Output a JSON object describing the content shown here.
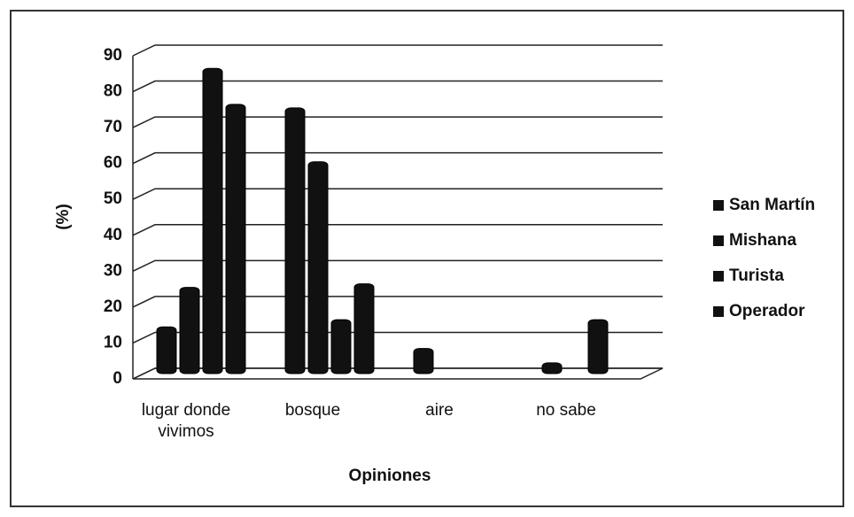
{
  "chart_data": {
    "type": "bar3d",
    "categories": [
      "lugar donde vivimos",
      "bosque",
      "aire",
      "no sabe"
    ],
    "series": [
      {
        "name": "San Martín",
        "color": "#111111",
        "values": [
          13,
          74,
          7,
          3
        ]
      },
      {
        "name": "Mishana",
        "color": "#111111",
        "values": [
          24,
          59,
          0,
          0
        ]
      },
      {
        "name": "Turista",
        "color": "#111111",
        "values": [
          85,
          15,
          0,
          15
        ]
      },
      {
        "name": "Operador",
        "color": "#111111",
        "values": [
          75,
          25,
          0,
          0
        ]
      }
    ],
    "ylim": [
      0,
      90
    ],
    "yticks": [
      0,
      10,
      20,
      30,
      40,
      50,
      60,
      70,
      80,
      90
    ],
    "ylabel": "(%)",
    "xlabel": "Opiniones",
    "grid": true,
    "legend": "right"
  }
}
